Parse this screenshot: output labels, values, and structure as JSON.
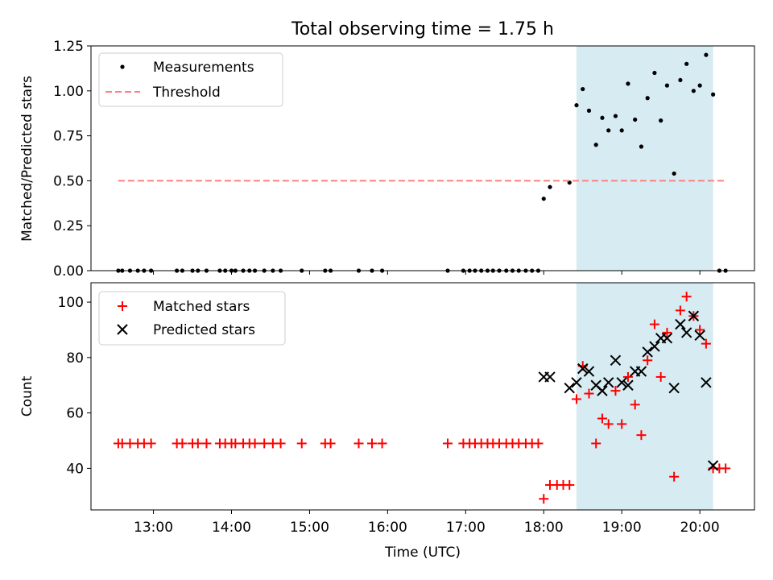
{
  "chart_data": {
    "title": "Total observing time = 1.75 h",
    "xlabel": "Time (UTC)",
    "x_unit": "hours UTC",
    "xlim": [
      12.2,
      20.7
    ],
    "x_ticks": [
      13,
      14,
      15,
      16,
      17,
      18,
      19,
      20
    ],
    "x_tick_labels": [
      "13:00",
      "14:00",
      "15:00",
      "16:00",
      "17:00",
      "18:00",
      "19:00",
      "20:00"
    ],
    "observing_window": {
      "start": 18.42,
      "end": 20.17,
      "color": "#add8e6"
    },
    "panels": [
      {
        "type": "scatter",
        "ylabel": "Matched/Predicted stars",
        "ylim": [
          0,
          1.25
        ],
        "y_ticks": [
          0,
          0.25,
          0.5,
          0.75,
          1.0,
          1.25
        ],
        "y_tick_labels": [
          "0.00",
          "0.25",
          "0.50",
          "0.75",
          "1.00",
          "1.25"
        ],
        "legend_position": "top-left",
        "series": [
          {
            "name": "Measurements",
            "marker": "dot",
            "color": "#000000",
            "points": [
              [
                12.55,
                0
              ],
              [
                12.6,
                0
              ],
              [
                12.7,
                0
              ],
              [
                12.8,
                0
              ],
              [
                12.88,
                0
              ],
              [
                12.97,
                0
              ],
              [
                13.3,
                0
              ],
              [
                13.37,
                0
              ],
              [
                13.5,
                0
              ],
              [
                13.57,
                0
              ],
              [
                13.68,
                0
              ],
              [
                13.85,
                0
              ],
              [
                13.92,
                0
              ],
              [
                14.0,
                0
              ],
              [
                14.05,
                0
              ],
              [
                14.15,
                0
              ],
              [
                14.23,
                0
              ],
              [
                14.3,
                0
              ],
              [
                14.42,
                0
              ],
              [
                14.53,
                0
              ],
              [
                14.63,
                0
              ],
              [
                14.9,
                0
              ],
              [
                15.2,
                0
              ],
              [
                15.27,
                0
              ],
              [
                15.63,
                0
              ],
              [
                15.8,
                0
              ],
              [
                15.93,
                0
              ],
              [
                16.77,
                0
              ],
              [
                16.97,
                0
              ],
              [
                17.05,
                0
              ],
              [
                17.12,
                0
              ],
              [
                17.2,
                0
              ],
              [
                17.28,
                0
              ],
              [
                17.35,
                0
              ],
              [
                17.43,
                0
              ],
              [
                17.52,
                0
              ],
              [
                17.6,
                0
              ],
              [
                17.68,
                0
              ],
              [
                17.77,
                0
              ],
              [
                17.85,
                0
              ],
              [
                17.93,
                0
              ],
              [
                18.0,
                0.4
              ],
              [
                18.08,
                0.465
              ],
              [
                18.33,
                0.49
              ],
              [
                18.42,
                0.92
              ],
              [
                18.5,
                1.01
              ],
              [
                18.58,
                0.89
              ],
              [
                18.67,
                0.7
              ],
              [
                18.75,
                0.85
              ],
              [
                18.83,
                0.78
              ],
              [
                18.92,
                0.86
              ],
              [
                19.0,
                0.78
              ],
              [
                19.08,
                1.04
              ],
              [
                19.17,
                0.84
              ],
              [
                19.25,
                0.69
              ],
              [
                19.33,
                0.96
              ],
              [
                19.42,
                1.1
              ],
              [
                19.5,
                0.835
              ],
              [
                19.58,
                1.03
              ],
              [
                19.67,
                0.54
              ],
              [
                19.75,
                1.06
              ],
              [
                19.83,
                1.15
              ],
              [
                19.92,
                1.0
              ],
              [
                20.0,
                1.03
              ],
              [
                20.08,
                1.2
              ],
              [
                20.17,
                0.98
              ],
              [
                20.25,
                0
              ],
              [
                20.33,
                0
              ]
            ]
          },
          {
            "name": "Threshold",
            "marker": "dashed-line",
            "color": "#ff7f7f",
            "points": [
              [
                12.55,
                0.5
              ],
              [
                20.33,
                0.5
              ]
            ]
          }
        ]
      },
      {
        "type": "scatter",
        "ylabel": "Count",
        "ylim": [
          25,
          107
        ],
        "y_ticks": [
          40,
          60,
          80,
          100
        ],
        "y_tick_labels": [
          "40",
          "60",
          "80",
          "100"
        ],
        "legend_position": "top-left",
        "series": [
          {
            "name": "Matched stars",
            "marker": "plus",
            "color": "#ff0000",
            "points": [
              [
                12.55,
                49
              ],
              [
                12.6,
                49
              ],
              [
                12.7,
                49
              ],
              [
                12.8,
                49
              ],
              [
                12.88,
                49
              ],
              [
                12.97,
                49
              ],
              [
                13.3,
                49
              ],
              [
                13.37,
                49
              ],
              [
                13.5,
                49
              ],
              [
                13.57,
                49
              ],
              [
                13.68,
                49
              ],
              [
                13.85,
                49
              ],
              [
                13.92,
                49
              ],
              [
                14.0,
                49
              ],
              [
                14.05,
                49
              ],
              [
                14.15,
                49
              ],
              [
                14.23,
                49
              ],
              [
                14.3,
                49
              ],
              [
                14.42,
                49
              ],
              [
                14.53,
                49
              ],
              [
                14.63,
                49
              ],
              [
                14.9,
                49
              ],
              [
                15.2,
                49
              ],
              [
                15.27,
                49
              ],
              [
                15.63,
                49
              ],
              [
                15.8,
                49
              ],
              [
                15.93,
                49
              ],
              [
                16.77,
                49
              ],
              [
                16.97,
                49
              ],
              [
                17.05,
                49
              ],
              [
                17.12,
                49
              ],
              [
                17.2,
                49
              ],
              [
                17.28,
                49
              ],
              [
                17.35,
                49
              ],
              [
                17.43,
                49
              ],
              [
                17.52,
                49
              ],
              [
                17.6,
                49
              ],
              [
                17.68,
                49
              ],
              [
                17.77,
                49
              ],
              [
                17.85,
                49
              ],
              [
                17.93,
                49
              ],
              [
                18.0,
                29
              ],
              [
                18.08,
                34
              ],
              [
                18.17,
                34
              ],
              [
                18.25,
                34
              ],
              [
                18.33,
                34
              ],
              [
                18.42,
                65
              ],
              [
                18.5,
                77
              ],
              [
                18.58,
                67
              ],
              [
                18.67,
                49
              ],
              [
                18.75,
                58
              ],
              [
                18.83,
                56
              ],
              [
                18.92,
                68
              ],
              [
                19.0,
                56
              ],
              [
                19.08,
                73
              ],
              [
                19.17,
                63
              ],
              [
                19.25,
                52
              ],
              [
                19.33,
                79
              ],
              [
                19.42,
                92
              ],
              [
                19.5,
                73
              ],
              [
                19.58,
                89
              ],
              [
                19.67,
                37
              ],
              [
                19.75,
                97
              ],
              [
                19.83,
                102
              ],
              [
                19.92,
                95
              ],
              [
                20.0,
                90
              ],
              [
                20.08,
                85
              ],
              [
                20.17,
                40
              ],
              [
                20.25,
                40
              ],
              [
                20.33,
                40
              ]
            ]
          },
          {
            "name": "Predicted stars",
            "marker": "x",
            "color": "#000000",
            "points": [
              [
                18.0,
                73
              ],
              [
                18.08,
                73
              ],
              [
                18.33,
                69
              ],
              [
                18.42,
                71
              ],
              [
                18.5,
                76
              ],
              [
                18.58,
                75
              ],
              [
                18.67,
                70
              ],
              [
                18.75,
                68
              ],
              [
                18.83,
                71
              ],
              [
                18.92,
                79
              ],
              [
                19.0,
                71
              ],
              [
                19.08,
                70
              ],
              [
                19.17,
                75
              ],
              [
                19.25,
                75
              ],
              [
                19.33,
                82
              ],
              [
                19.42,
                84
              ],
              [
                19.5,
                87
              ],
              [
                19.58,
                87
              ],
              [
                19.67,
                69
              ],
              [
                19.75,
                92
              ],
              [
                19.83,
                89
              ],
              [
                19.92,
                95
              ],
              [
                20.0,
                88
              ],
              [
                20.08,
                71
              ],
              [
                20.17,
                41
              ]
            ]
          }
        ]
      }
    ]
  }
}
